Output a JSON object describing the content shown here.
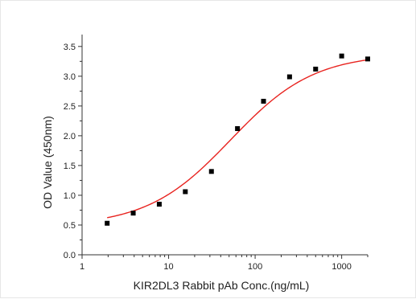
{
  "chart_data": {
    "type": "scatter",
    "xlabel": "KIR2DL3 Rabbit pAb Conc.(ng/mL)",
    "ylabel": "OD Value (450nm)",
    "x_scale": "log",
    "xlim": [
      1,
      2000
    ],
    "ylim": [
      0,
      3.7
    ],
    "x_ticks": [
      1,
      10,
      100,
      1000
    ],
    "x_tick_labels": [
      "1",
      "10",
      "100",
      "1000"
    ],
    "y_ticks": [
      0,
      0.5,
      1,
      1.5,
      2,
      2.5,
      3,
      3.5
    ],
    "y_tick_labels": [
      "0.0",
      "0.5",
      "1.0",
      "1.5",
      "2.0",
      "2.5",
      "3.0",
      "3.5"
    ],
    "grid": false,
    "legend": "none",
    "series": [
      {
        "kind": "points",
        "marker": "square",
        "color": "#000000",
        "x": [
          1.95,
          3.9,
          7.8,
          15.6,
          31.25,
          62.5,
          125,
          250,
          500,
          1000,
          2000
        ],
        "y": [
          0.53,
          0.7,
          0.85,
          1.06,
          1.4,
          2.12,
          2.58,
          2.99,
          3.12,
          3.34,
          3.29
        ]
      },
      {
        "kind": "fit-curve",
        "model": "4PL",
        "color": "#e8231f",
        "params": {
          "bottom": 0.48,
          "top": 3.38,
          "ec50": 52,
          "hill": 0.9
        },
        "x_range": [
          1.95,
          2000
        ]
      }
    ]
  }
}
